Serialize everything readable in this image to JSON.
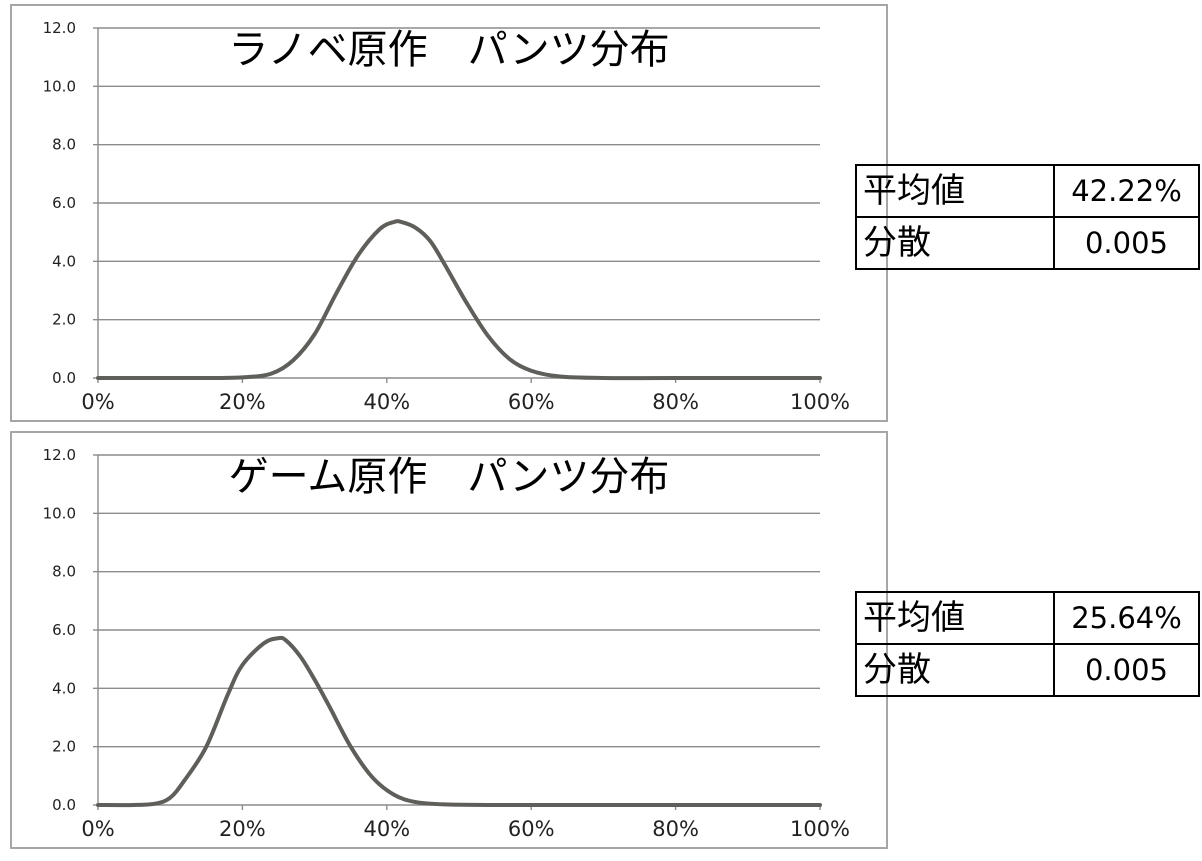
{
  "charts": [
    {
      "title": "ラノベ原作　パンツ分布",
      "stats": {
        "mean_label": "平均値",
        "mean_value": "42.22%",
        "var_label": "分散",
        "var_value": "0.005"
      }
    },
    {
      "title": "ゲーム原作　パンツ分布",
      "stats": {
        "mean_label": "平均値",
        "mean_value": "25.64%",
        "var_label": "分散",
        "var_value": "0.005"
      }
    }
  ],
  "chart_data": [
    {
      "type": "line",
      "title": "ラノベ原作　パンツ分布",
      "xlabel": "",
      "ylabel": "",
      "xlim": [
        0,
        1
      ],
      "ylim": [
        0,
        12
      ],
      "x_ticks": [
        "0%",
        "20%",
        "40%",
        "60%",
        "80%",
        "100%"
      ],
      "y_ticks": [
        "0.0",
        "2.0",
        "4.0",
        "6.0",
        "8.0",
        "10.0",
        "12.0"
      ],
      "grid": "horizontal",
      "line_color": "#605e5a",
      "x": [
        0.0,
        0.15,
        0.2,
        0.24,
        0.27,
        0.3,
        0.33,
        0.36,
        0.39,
        0.41,
        0.42,
        0.44,
        0.46,
        0.48,
        0.51,
        0.54,
        0.57,
        0.6,
        0.64,
        0.7,
        0.8,
        1.0
      ],
      "y": [
        0.0,
        0.0,
        0.02,
        0.15,
        0.6,
        1.5,
        2.9,
        4.2,
        5.1,
        5.35,
        5.35,
        5.15,
        4.7,
        3.9,
        2.6,
        1.45,
        0.65,
        0.25,
        0.05,
        0.0,
        0.0,
        0.0
      ]
    },
    {
      "type": "line",
      "title": "ゲーム原作　パンツ分布",
      "xlabel": "",
      "ylabel": "",
      "xlim": [
        0,
        1
      ],
      "ylim": [
        0,
        12
      ],
      "x_ticks": [
        "0%",
        "20%",
        "40%",
        "60%",
        "80%",
        "100%"
      ],
      "y_ticks": [
        "0.0",
        "2.0",
        "4.0",
        "6.0",
        "8.0",
        "10.0",
        "12.0"
      ],
      "grid": "horizontal",
      "line_color": "#605e5a",
      "x": [
        0.0,
        0.05,
        0.08,
        0.1,
        0.12,
        0.15,
        0.18,
        0.2,
        0.23,
        0.25,
        0.26,
        0.28,
        0.3,
        0.32,
        0.35,
        0.38,
        0.41,
        0.44,
        0.48,
        0.55,
        0.7,
        1.0
      ],
      "y": [
        0.0,
        0.0,
        0.05,
        0.25,
        0.85,
        2.0,
        3.8,
        4.8,
        5.55,
        5.72,
        5.65,
        5.1,
        4.3,
        3.4,
        2.0,
        0.95,
        0.35,
        0.1,
        0.02,
        0.0,
        0.0,
        0.0
      ]
    }
  ]
}
